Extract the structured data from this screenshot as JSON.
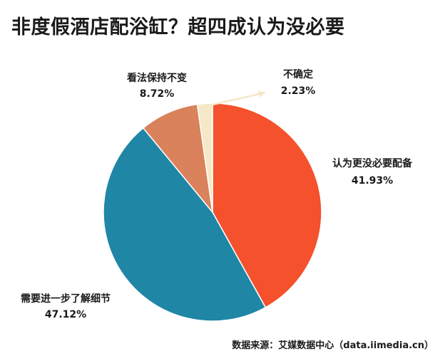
{
  "title": "非度假酒店配浴缸？超四成认为没必要",
  "source": "数据来源：艾媒数据中心（data.iimedia.cn）",
  "chart_data": {
    "type": "pie",
    "start": "12 o'clock, clockwise",
    "slices": [
      {
        "name": "认为更没必要配备",
        "value": 41.93,
        "label": "41.93%",
        "color": "#F4512C"
      },
      {
        "name": "需要进一步了解细节",
        "value": 47.12,
        "label": "47.12%",
        "color": "#1F86A6"
      },
      {
        "name": "看法保持不变",
        "value": 8.72,
        "label": "8.72%",
        "color": "#D9825B"
      },
      {
        "name": "不确定",
        "value": 2.23,
        "label": "2.23%",
        "color": "#F5E8C6"
      }
    ]
  }
}
